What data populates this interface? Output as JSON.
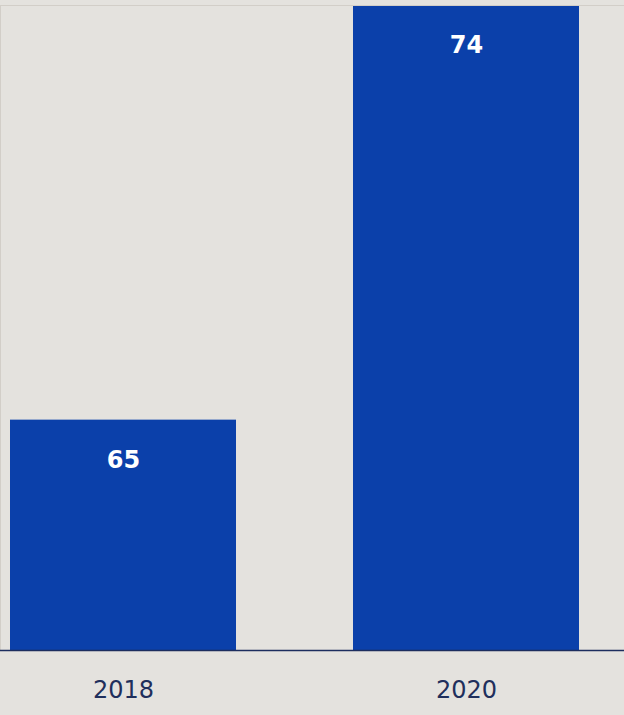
{
  "chart_data": {
    "type": "bar",
    "categories": [
      "2018",
      "2020"
    ],
    "values": [
      65,
      74
    ],
    "color": "#0b40aa",
    "ylim": [
      60,
      74
    ],
    "yticks": [
      60,
      74
    ],
    "tick_labels": "x",
    "data_labels": true,
    "grid": false
  }
}
